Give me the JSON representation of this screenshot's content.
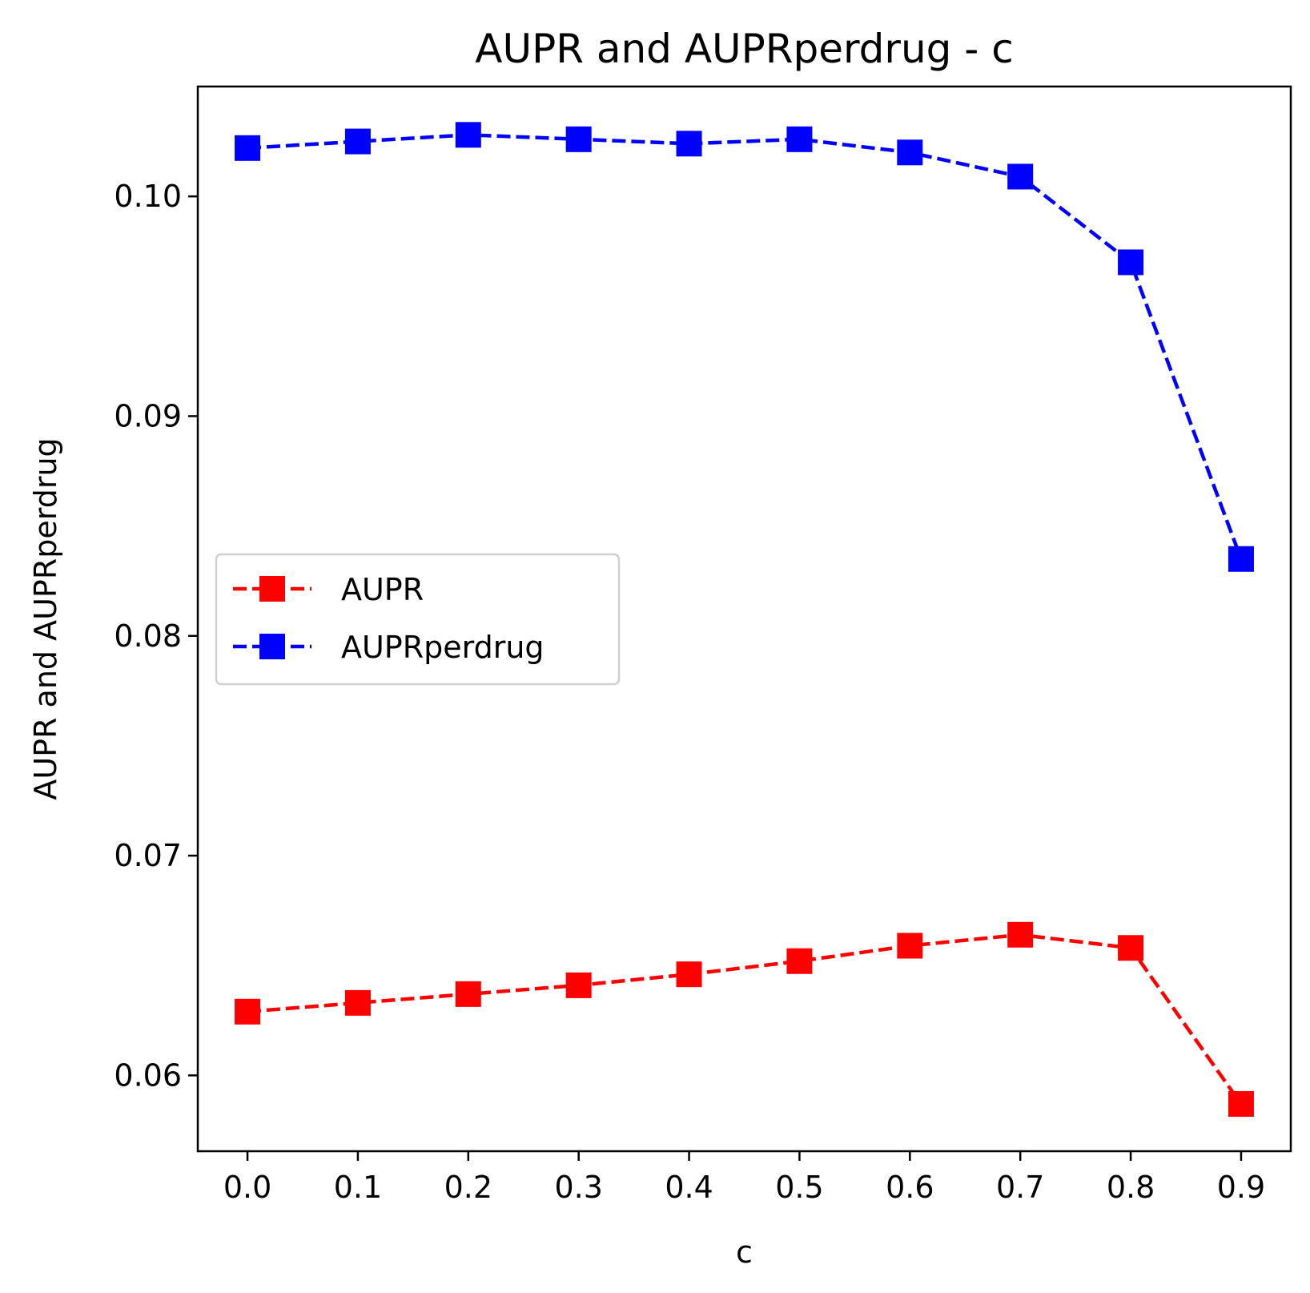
{
  "chart_data": {
    "type": "line",
    "title": "AUPR and AUPRperdrug - c",
    "xlabel": "c",
    "ylabel": "AUPR and AUPRperdrug",
    "x": [
      0.0,
      0.1,
      0.2,
      0.3,
      0.4,
      0.5,
      0.6,
      0.7,
      0.8,
      0.9
    ],
    "x_tick_labels": [
      "0.0",
      "0.1",
      "0.2",
      "0.3",
      "0.4",
      "0.5",
      "0.6",
      "0.7",
      "0.8",
      "0.9"
    ],
    "y_ticks": [
      0.06,
      0.07,
      0.08,
      0.09,
      0.1
    ],
    "y_tick_labels": [
      "0.06",
      "0.07",
      "0.08",
      "0.09",
      "0.10"
    ],
    "xlim": [
      -0.045,
      0.945
    ],
    "ylim": [
      0.05655,
      0.105
    ],
    "grid": false,
    "legend_position": "center-left",
    "series": [
      {
        "name": "AUPR",
        "color": "#ff0000",
        "marker": "square",
        "linestyle": "dashed",
        "values": [
          0.0629,
          0.0633,
          0.0637,
          0.0641,
          0.0646,
          0.0652,
          0.0659,
          0.0664,
          0.0658,
          0.0587
        ]
      },
      {
        "name": "AUPRperdrug",
        "color": "#0000ff",
        "marker": "square",
        "linestyle": "dashed",
        "values": [
          0.1022,
          0.1025,
          0.1028,
          0.1026,
          0.1024,
          0.1026,
          0.102,
          0.1009,
          0.097,
          0.0835
        ]
      }
    ]
  }
}
